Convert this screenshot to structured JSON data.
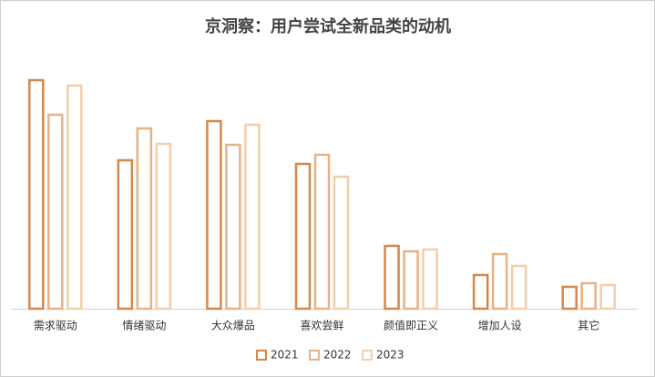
{
  "chart_data": {
    "type": "bar",
    "title": "京洞察：用户尝试全新品类的动机",
    "categories": [
      "需求驱动",
      "情绪驱动",
      "大众爆品",
      "喜欢尝鲜",
      "颜值即正义",
      "增加人设",
      "其它"
    ],
    "series": [
      {
        "name": "2021",
        "color": "#d4874a",
        "values": [
          25.2,
          16.4,
          20.7,
          16.0,
          7.0,
          3.8,
          2.5
        ]
      },
      {
        "name": "2022",
        "color": "#e6b287",
        "values": [
          21.4,
          19.9,
          18.1,
          17.0,
          6.4,
          6.1,
          2.9
        ]
      },
      {
        "name": "2023",
        "color": "#f1ceac",
        "values": [
          24.6,
          18.2,
          20.3,
          14.6,
          6.6,
          4.8,
          2.7
        ]
      }
    ],
    "legend": "bottom"
  }
}
